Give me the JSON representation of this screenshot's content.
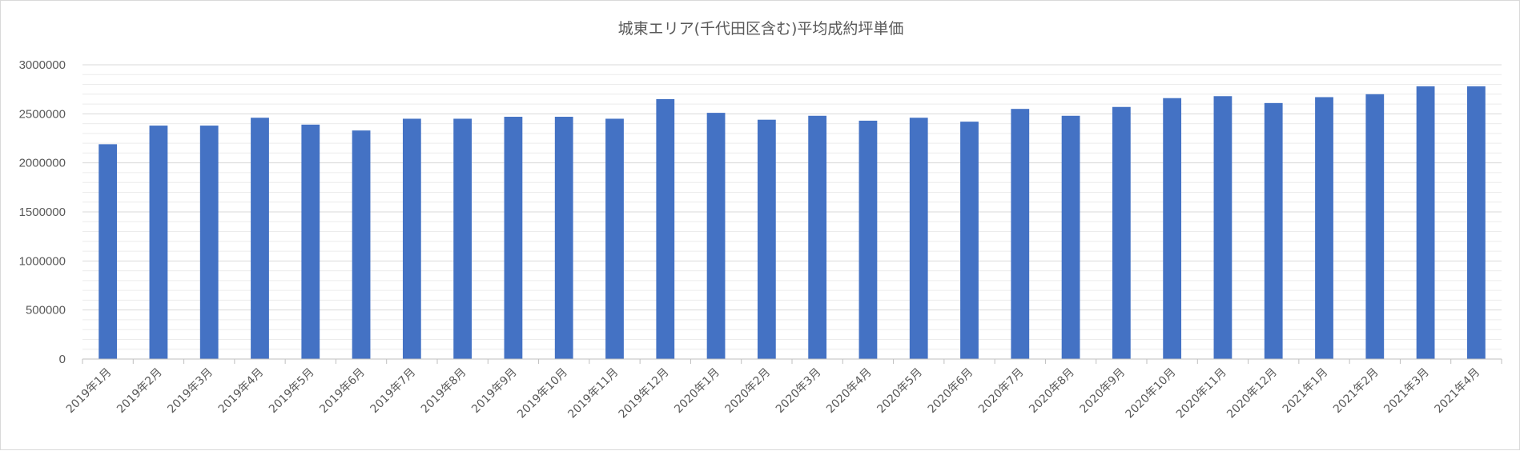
{
  "chart_data": {
    "type": "bar",
    "title": "城東エリア(千代田区含む)平均成約坪単価",
    "xlabel": "",
    "ylabel": "",
    "ylim": [
      0,
      3000000
    ],
    "y_ticks": [
      "0",
      "500000",
      "1000000",
      "1500000",
      "2000000",
      "2500000",
      "3000000"
    ],
    "grid": true,
    "legend": "none",
    "bar_color": "#4472C4",
    "categories": [
      "2019年1月",
      "2019年2月",
      "2019年3月",
      "2019年4月",
      "2019年5月",
      "2019年6月",
      "2019年7月",
      "2019年8月",
      "2019年9月",
      "2019年10月",
      "2019年11月",
      "2019年12月",
      "2020年1月",
      "2020年2月",
      "2020年3月",
      "2020年4月",
      "2020年5月",
      "2020年6月",
      "2020年7月",
      "2020年8月",
      "2020年9月",
      "2020年10月",
      "2020年11月",
      "2020年12月",
      "2021年1月",
      "2021年2月",
      "2021年3月",
      "2021年4月"
    ],
    "values": [
      2190000,
      2380000,
      2380000,
      2460000,
      2390000,
      2330000,
      2450000,
      2450000,
      2470000,
      2470000,
      2450000,
      2650000,
      2510000,
      2440000,
      2480000,
      2430000,
      2460000,
      2420000,
      2550000,
      2480000,
      2570000,
      2660000,
      2680000,
      2610000,
      2670000,
      2700000,
      2780000,
      2780000
    ]
  }
}
